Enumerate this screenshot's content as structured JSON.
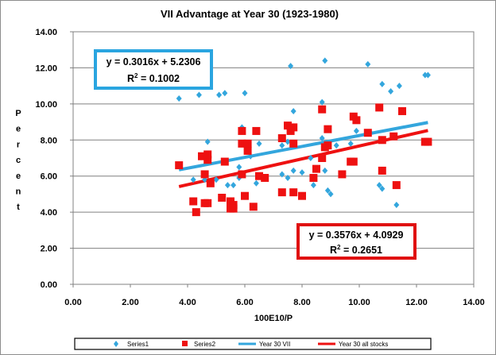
{
  "chart_data": {
    "type": "scatter",
    "title": "VII Advantage at Year 30 (1923-1980)",
    "xlabel": "100E10/P",
    "ylabel": "Percent",
    "xlim": [
      0,
      14
    ],
    "ylim": [
      0,
      14
    ],
    "x_ticks": [
      "0.00",
      "2.00",
      "4.00",
      "6.00",
      "8.00",
      "10.00",
      "12.00",
      "14.00"
    ],
    "y_ticks": [
      "0.00",
      "2.00",
      "4.00",
      "6.00",
      "8.00",
      "10.00",
      "12.00",
      "14.00"
    ],
    "grid": "horizontal major",
    "legend_position": "bottom",
    "series": [
      {
        "name": "Series1",
        "marker": "diamond",
        "color": "#33a6dd",
        "points": [
          [
            3.7,
            10.3
          ],
          [
            4.4,
            10.5
          ],
          [
            4.7,
            7.9
          ],
          [
            5.1,
            10.5
          ],
          [
            5.3,
            10.6
          ],
          [
            4.2,
            5.8
          ],
          [
            4.6,
            5.8
          ],
          [
            5.0,
            5.8
          ],
          [
            5.4,
            5.5
          ],
          [
            5.6,
            5.5
          ],
          [
            5.8,
            5.9
          ],
          [
            5.9,
            8.7
          ],
          [
            6.0,
            10.6
          ],
          [
            6.2,
            7.1
          ],
          [
            6.5,
            7.8
          ],
          [
            5.8,
            6.5
          ],
          [
            6.4,
            5.6
          ],
          [
            7.3,
            7.7
          ],
          [
            7.5,
            7.9
          ],
          [
            7.6,
            12.1
          ],
          [
            7.7,
            9.6
          ],
          [
            7.3,
            6.1
          ],
          [
            7.5,
            5.9
          ],
          [
            7.7,
            6.3
          ],
          [
            8.0,
            6.2
          ],
          [
            8.3,
            7.0
          ],
          [
            8.4,
            5.5
          ],
          [
            8.7,
            10.1
          ],
          [
            8.8,
            12.4
          ],
          [
            8.7,
            8.1
          ],
          [
            8.8,
            6.3
          ],
          [
            8.9,
            5.2
          ],
          [
            9.0,
            5.0
          ],
          [
            9.2,
            7.7
          ],
          [
            9.7,
            7.8
          ],
          [
            9.9,
            8.5
          ],
          [
            10.3,
            12.2
          ],
          [
            10.4,
            8.4
          ],
          [
            10.7,
            5.5
          ],
          [
            10.8,
            5.3
          ],
          [
            10.8,
            11.1
          ],
          [
            11.1,
            10.7
          ],
          [
            11.3,
            4.4
          ],
          [
            11.4,
            11.0
          ],
          [
            12.3,
            11.6
          ],
          [
            12.4,
            11.6
          ]
        ]
      },
      {
        "name": "Series2",
        "marker": "square",
        "color": "#ee1111",
        "points": [
          [
            3.7,
            6.6
          ],
          [
            4.2,
            4.6
          ],
          [
            4.3,
            4.0
          ],
          [
            4.5,
            7.1
          ],
          [
            4.6,
            4.5
          ],
          [
            4.6,
            6.1
          ],
          [
            4.7,
            4.5
          ],
          [
            4.7,
            6.9
          ],
          [
            4.8,
            5.6
          ],
          [
            4.7,
            7.2
          ],
          [
            5.2,
            4.8
          ],
          [
            5.3,
            6.8
          ],
          [
            5.5,
            4.6
          ],
          [
            5.5,
            4.2
          ],
          [
            5.6,
            4.4
          ],
          [
            5.6,
            4.2
          ],
          [
            5.9,
            7.8
          ],
          [
            5.9,
            8.5
          ],
          [
            5.9,
            6.1
          ],
          [
            6.0,
            4.9
          ],
          [
            6.1,
            7.4
          ],
          [
            6.1,
            7.8
          ],
          [
            6.3,
            4.3
          ],
          [
            6.4,
            8.5
          ],
          [
            6.5,
            6.0
          ],
          [
            6.7,
            5.9
          ],
          [
            7.3,
            8.1
          ],
          [
            7.3,
            5.1
          ],
          [
            7.5,
            8.8
          ],
          [
            7.6,
            8.5
          ],
          [
            7.7,
            5.1
          ],
          [
            7.7,
            8.7
          ],
          [
            7.7,
            7.8
          ],
          [
            8.0,
            4.9
          ],
          [
            8.4,
            5.9
          ],
          [
            8.5,
            6.4
          ],
          [
            8.7,
            7.0
          ],
          [
            8.7,
            9.7
          ],
          [
            8.8,
            7.6
          ],
          [
            8.9,
            8.6
          ],
          [
            8.9,
            7.7
          ],
          [
            9.4,
            6.1
          ],
          [
            9.7,
            6.8
          ],
          [
            9.8,
            6.8
          ],
          [
            9.8,
            9.3
          ],
          [
            9.9,
            9.1
          ],
          [
            10.3,
            8.4
          ],
          [
            10.7,
            9.8
          ],
          [
            10.8,
            6.3
          ],
          [
            10.8,
            8.0
          ],
          [
            11.2,
            8.2
          ],
          [
            11.3,
            5.5
          ],
          [
            11.5,
            9.6
          ],
          [
            12.3,
            7.9
          ],
          [
            12.4,
            7.9
          ]
        ]
      }
    ],
    "trendlines": [
      {
        "name": "Year 30 VII",
        "color": "#33a6dd",
        "slope": 0.3016,
        "intercept": 5.2306,
        "x_range": [
          3.7,
          12.4
        ],
        "equation": "y = 0.3016x + 5.2306",
        "r2_prefix": "R",
        "r2_sup": "2",
        "r2_value": " = 0.1002"
      },
      {
        "name": "Year 30 all stocks",
        "color": "#ee1111",
        "slope": 0.3576,
        "intercept": 4.0929,
        "x_range": [
          3.7,
          12.4
        ],
        "equation": "y = 0.3576x + 4.0929",
        "r2_prefix": "R",
        "r2_sup": "2",
        "r2_value": " = 0.2651"
      }
    ]
  }
}
